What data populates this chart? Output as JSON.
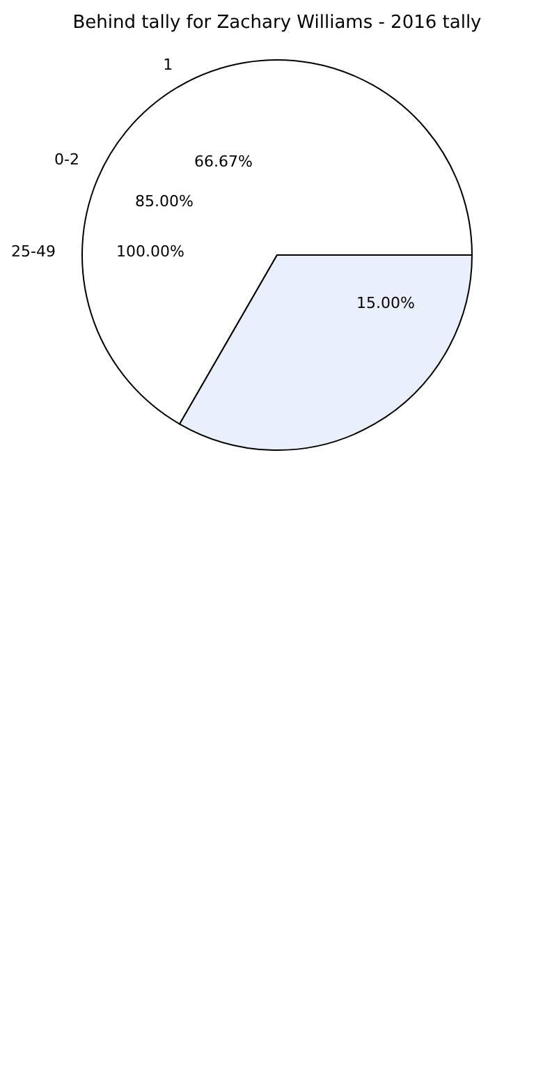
{
  "chart_data": {
    "type": "pie",
    "title": "Behind tally for Zachary Williams - 2016 tally",
    "categories": [
      "1",
      null
    ],
    "values": [
      66.67,
      33.33
    ],
    "colors": [
      "#ffffff",
      "#eaf0fb"
    ],
    "value_labels": [
      "66.67%",
      null
    ],
    "annotations": [
      "0-2",
      "85.00%",
      "25-49",
      "100.00%",
      "15.00%"
    ],
    "legend": false
  }
}
